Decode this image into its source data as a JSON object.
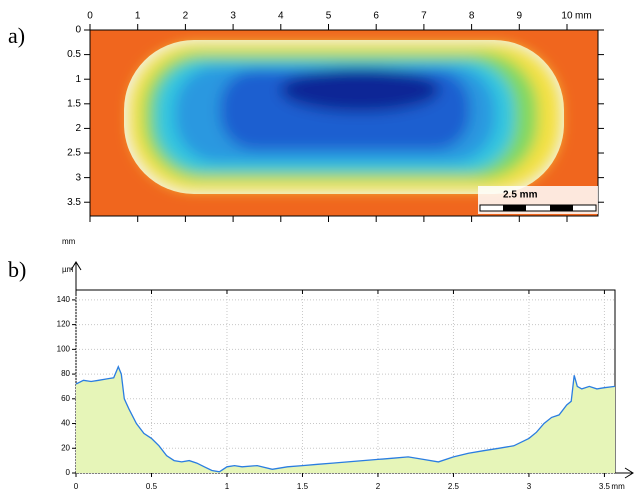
{
  "chart_data": [
    {
      "type": "heatmap",
      "panel_label": "a)",
      "x_unit": "mm",
      "y_unit": "mm",
      "scale_bar_label": "2.5 mm",
      "xlim": [
        0,
        10.65
      ],
      "ylim": [
        0,
        3.78
      ],
      "xticks": [
        0,
        1,
        2,
        3,
        4,
        5,
        6,
        7,
        8,
        9,
        10
      ],
      "yticks": [
        0,
        0.5,
        1,
        1.5,
        2,
        2.5,
        3,
        3.5
      ]
    },
    {
      "type": "area",
      "panel_label": "b)",
      "x_unit": "mm",
      "y_unit": "µm",
      "color": "#2a7de1",
      "fill": "#e6f5b8",
      "grid": true,
      "x": [
        0,
        0.05,
        0.1,
        0.15,
        0.2,
        0.25,
        0.28,
        0.3,
        0.32,
        0.35,
        0.4,
        0.45,
        0.5,
        0.55,
        0.6,
        0.65,
        0.7,
        0.75,
        0.8,
        0.85,
        0.9,
        0.95,
        1.0,
        1.05,
        1.1,
        1.2,
        1.3,
        1.4,
        1.5,
        1.6,
        1.7,
        1.8,
        1.9,
        2.0,
        2.1,
        2.2,
        2.3,
        2.4,
        2.5,
        2.6,
        2.7,
        2.8,
        2.9,
        3.0,
        3.05,
        3.1,
        3.15,
        3.2,
        3.25,
        3.28,
        3.3,
        3.32,
        3.35,
        3.4,
        3.45,
        3.5,
        3.57
      ],
      "values": [
        72,
        75,
        74,
        75,
        76,
        77,
        86,
        80,
        60,
        52,
        40,
        32,
        28,
        22,
        14,
        10,
        9,
        10,
        8,
        5,
        2,
        1,
        5,
        6,
        5,
        6,
        3,
        5,
        6,
        7,
        8,
        9,
        10,
        11,
        12,
        13,
        11,
        9,
        13,
        16,
        18,
        20,
        22,
        28,
        33,
        40,
        45,
        47,
        55,
        58,
        79,
        70,
        68,
        70,
        68,
        69,
        70
      ],
      "xlim": [
        0,
        3.57
      ],
      "ylim": [
        0,
        148
      ],
      "xticks": [
        0,
        0.5,
        1,
        1.5,
        2,
        2.5,
        3,
        3.5
      ],
      "yticks": [
        0,
        20,
        40,
        60,
        80,
        100,
        120,
        140
      ]
    }
  ]
}
